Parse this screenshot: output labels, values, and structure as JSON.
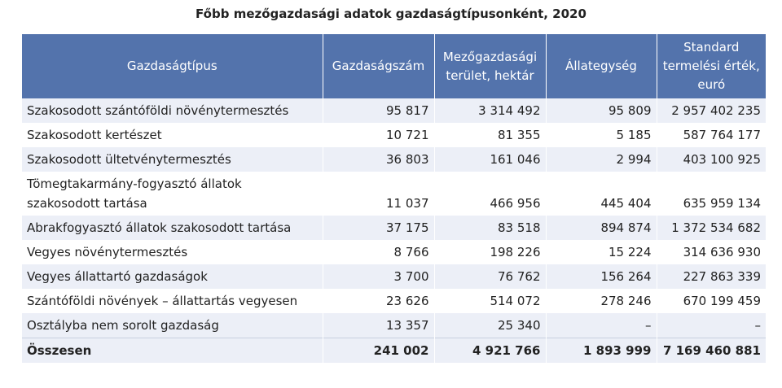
{
  "title": "Főbb mezőgazdasági adatok gazdaságtípusonként, 2020",
  "table": {
    "header": [
      "Gazdaságtípus",
      "Gazdaságszám",
      "Mezőgazdasági terület, hektár",
      "Állategység",
      "Standard termelési érték, euró"
    ],
    "rows": [
      [
        "Szakosodott szántóföldi növénytermesztés",
        "95 817",
        "3 314 492",
        "95 809",
        "2 957 402 235"
      ],
      [
        "Szakosodott kertészet",
        "10 721",
        "81 355",
        "5 185",
        "587 764 177"
      ],
      [
        "Szakosodott ültetvénytermesztés",
        "36 803",
        "161 046",
        "2 994",
        "403 100 925"
      ],
      [
        "Tömegtakarmány-fogyasztó állatok szakosodott tartása",
        "11 037",
        "466 956",
        "445 404",
        "635 959 134"
      ],
      [
        "Abrakfogyasztó állatok szakosodott tartása",
        "37 175",
        "83 518",
        "894 874",
        "1 372 534 682"
      ],
      [
        "Vegyes növénytermesztés",
        "8 766",
        "198 226",
        "15 224",
        "314 636 930"
      ],
      [
        "Vegyes állattartó gazdaságok",
        "3 700",
        "76 762",
        "156 264",
        "227 863 339"
      ],
      [
        "Szántóföldi növények – állattartás vegyesen",
        "23 626",
        "514 072",
        "278 246",
        "670 199 459"
      ],
      [
        "Osztályba nem sorolt gazdaság",
        "13 357",
        "25 340",
        "–",
        "–"
      ]
    ],
    "total": [
      "Összesen",
      "241 002",
      "4 921 766",
      "1 893 999",
      "7 169 460 881"
    ]
  }
}
